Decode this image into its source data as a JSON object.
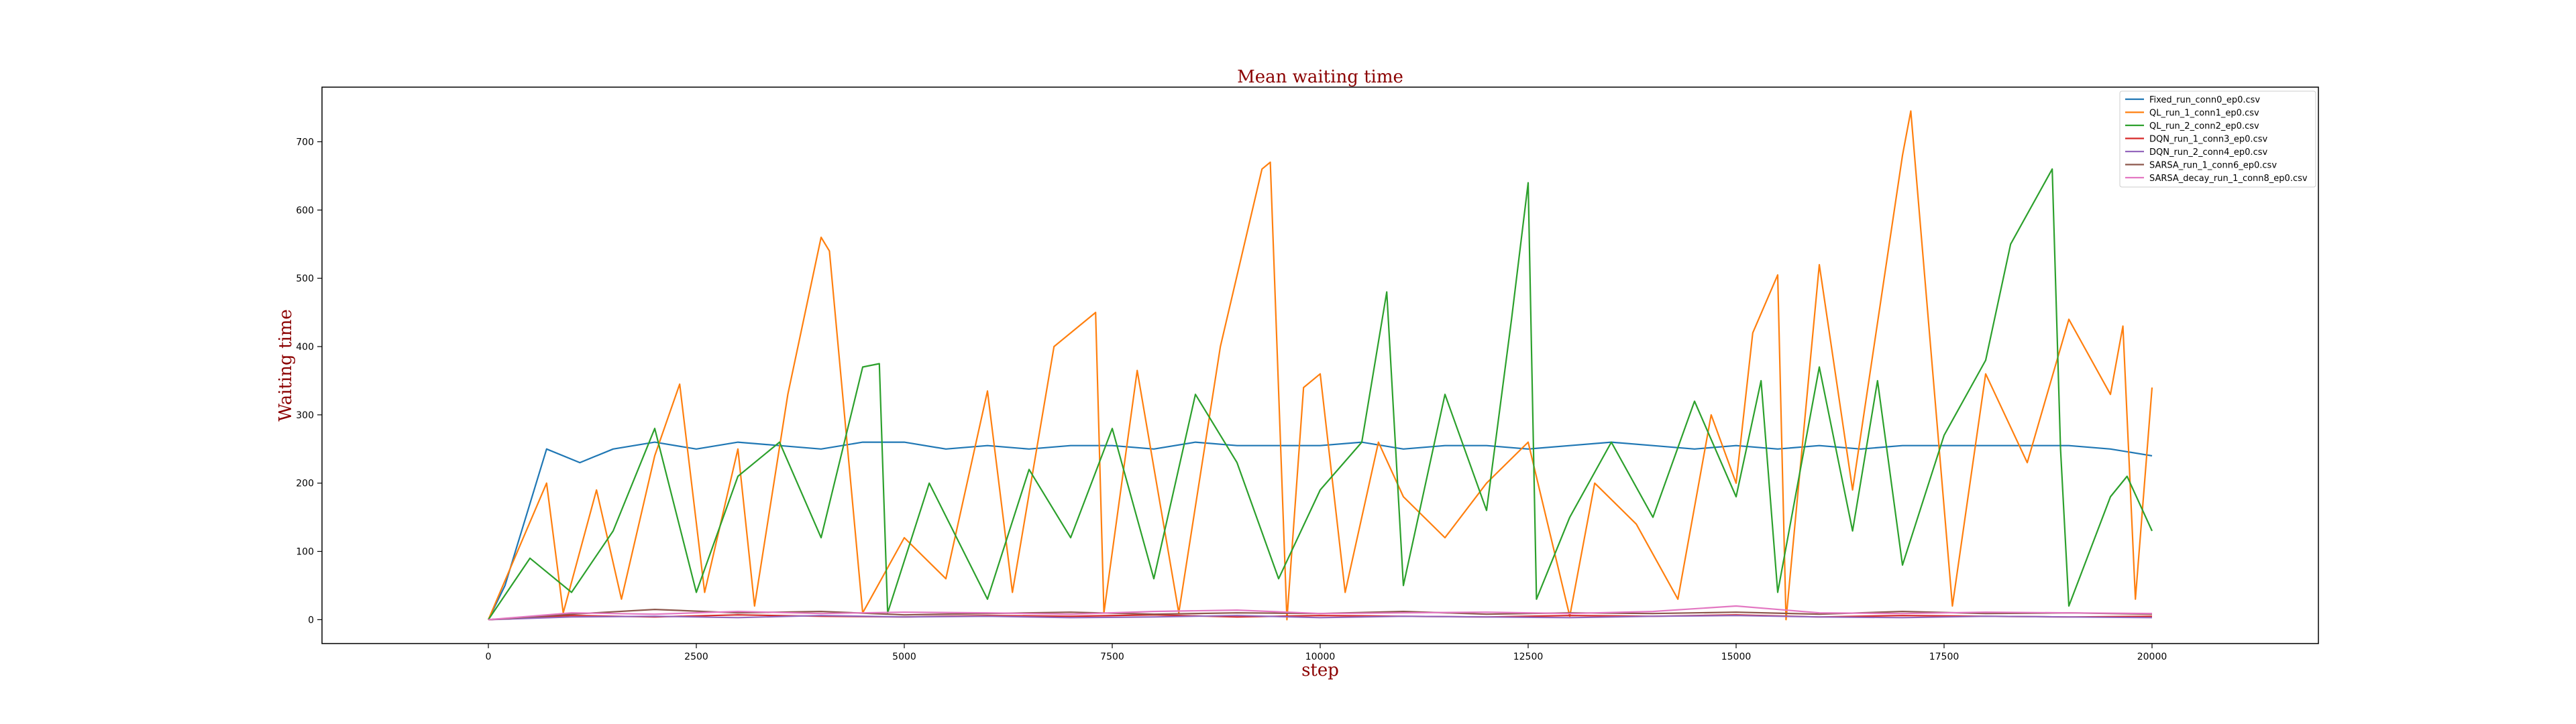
{
  "chart_data": {
    "type": "line",
    "title": "Mean waiting time",
    "xlabel": "step",
    "ylabel": "Waiting time",
    "xlim": [
      -2000,
      22000
    ],
    "ylim": [
      -35,
      780
    ],
    "xticks": [
      0,
      2500,
      5000,
      7500,
      10000,
      12500,
      15000,
      17500,
      20000
    ],
    "yticks": [
      0,
      100,
      200,
      300,
      400,
      500,
      600,
      700
    ],
    "grid": false,
    "legend_position": "upper right",
    "label_color": "#8b0000",
    "series": [
      {
        "name": "Fixed_run_conn0_ep0.csv",
        "color": "#1f77b4",
        "x": [
          0,
          200,
          450,
          700,
          1100,
          1500,
          2000,
          2500,
          3000,
          3500,
          4000,
          4500,
          5000,
          5500,
          6000,
          6500,
          7000,
          7500,
          8000,
          8500,
          9000,
          9500,
          10000,
          10500,
          11000,
          11500,
          12000,
          12500,
          13000,
          13500,
          14000,
          14500,
          15000,
          15500,
          16000,
          16500,
          17000,
          17500,
          18000,
          18500,
          19000,
          19500,
          20000
        ],
        "values": [
          0,
          50,
          150,
          250,
          230,
          250,
          260,
          250,
          260,
          255,
          250,
          260,
          260,
          250,
          255,
          250,
          255,
          255,
          250,
          260,
          255,
          255,
          255,
          260,
          250,
          255,
          255,
          250,
          255,
          260,
          255,
          250,
          255,
          250,
          255,
          250,
          255,
          255,
          255,
          255,
          255,
          250,
          240
        ]
      },
      {
        "name": "QL_run_1_conn1_ep0.csv",
        "color": "#ff7f0e",
        "x": [
          0,
          700,
          900,
          1300,
          1600,
          2000,
          2300,
          2600,
          3000,
          3200,
          3600,
          4000,
          4100,
          4500,
          5000,
          5500,
          6000,
          6300,
          6800,
          7300,
          7400,
          7800,
          8300,
          8800,
          9300,
          9400,
          9600,
          9800,
          10000,
          10300,
          10700,
          11000,
          11500,
          12000,
          12500,
          13000,
          13300,
          13800,
          14300,
          14700,
          15000,
          15200,
          15500,
          15600,
          16000,
          16400,
          17000,
          17100,
          17600,
          18000,
          18500,
          19000,
          19500,
          19650,
          19800,
          20000
        ],
        "values": [
          0,
          200,
          10,
          190,
          30,
          240,
          345,
          40,
          250,
          20,
          330,
          560,
          540,
          10,
          120,
          60,
          335,
          40,
          400,
          450,
          10,
          365,
          10,
          400,
          660,
          670,
          0,
          340,
          360,
          40,
          260,
          180,
          120,
          200,
          260,
          5,
          200,
          140,
          30,
          300,
          200,
          420,
          505,
          0,
          520,
          190,
          680,
          745,
          20,
          360,
          230,
          440,
          330,
          430,
          30,
          340
        ]
      },
      {
        "name": "QL_run_2_conn2_ep0.csv",
        "color": "#2ca02c",
        "x": [
          0,
          500,
          1000,
          1500,
          2000,
          2500,
          3000,
          3500,
          4000,
          4500,
          4700,
          4800,
          5300,
          6000,
          6500,
          7000,
          7500,
          8000,
          8500,
          9000,
          9500,
          10000,
          10500,
          10800,
          11000,
          11500,
          12000,
          12300,
          12500,
          12600,
          13000,
          13500,
          14000,
          14500,
          15000,
          15300,
          15500,
          16000,
          16400,
          16700,
          17000,
          17500,
          18000,
          18300,
          18800,
          18900,
          19000,
          19500,
          19700,
          20000
        ],
        "values": [
          0,
          90,
          40,
          130,
          280,
          40,
          210,
          260,
          120,
          370,
          375,
          10,
          200,
          30,
          220,
          120,
          280,
          60,
          330,
          230,
          60,
          190,
          260,
          480,
          50,
          330,
          160,
          440,
          640,
          30,
          150,
          260,
          150,
          320,
          180,
          350,
          40,
          370,
          130,
          350,
          80,
          270,
          380,
          550,
          660,
          250,
          20,
          180,
          210,
          130
        ]
      },
      {
        "name": "DQN_run_1_conn3_ep0.csv",
        "color": "#d62728",
        "x": [
          0,
          1000,
          2000,
          3000,
          4000,
          5000,
          6000,
          7000,
          8000,
          9000,
          10000,
          11000,
          12000,
          13000,
          14000,
          15000,
          16000,
          17000,
          18000,
          19000,
          20000
        ],
        "values": [
          0,
          6,
          4,
          7,
          5,
          4,
          6,
          5,
          7,
          4,
          6,
          5,
          4,
          6,
          5,
          7,
          4,
          6,
          5,
          4,
          5
        ]
      },
      {
        "name": "DQN_run_2_conn4_ep0.csv",
        "color": "#9467bd",
        "x": [
          0,
          1000,
          2000,
          3000,
          4000,
          5000,
          6000,
          7000,
          8000,
          9000,
          10000,
          11000,
          12000,
          13000,
          14000,
          15000,
          16000,
          17000,
          18000,
          19000,
          20000
        ],
        "values": [
          0,
          4,
          5,
          3,
          6,
          4,
          5,
          3,
          4,
          6,
          3,
          5,
          4,
          3,
          5,
          6,
          4,
          3,
          5,
          4,
          3
        ]
      },
      {
        "name": "SARSA_run_1_conn6_ep0.csv",
        "color": "#8c564b",
        "x": [
          0,
          1000,
          2000,
          3000,
          4000,
          5000,
          6000,
          7000,
          8000,
          9000,
          10000,
          11000,
          12000,
          13000,
          14000,
          15000,
          16000,
          17000,
          18000,
          19000,
          20000
        ],
        "values": [
          0,
          8,
          15,
          10,
          12,
          7,
          9,
          11,
          8,
          10,
          9,
          12,
          8,
          10,
          9,
          11,
          8,
          12,
          9,
          10,
          8
        ]
      },
      {
        "name": "SARSA_decay_run_1_conn8_ep0.csv",
        "color": "#e377c2",
        "x": [
          0,
          1000,
          2000,
          3000,
          4000,
          5000,
          6000,
          7000,
          8000,
          9000,
          10000,
          11000,
          12000,
          13000,
          14000,
          15000,
          16000,
          17000,
          18000,
          19000,
          20000
        ],
        "values": [
          0,
          10,
          8,
          12,
          9,
          11,
          10,
          8,
          12,
          14,
          9,
          10,
          11,
          9,
          12,
          20,
          10,
          9,
          11,
          10,
          9
        ]
      }
    ]
  }
}
